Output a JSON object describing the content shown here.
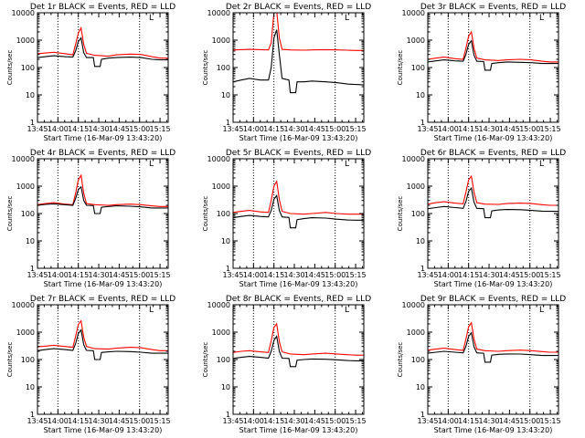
{
  "page": {
    "background": "#ffffff"
  },
  "colors": {
    "events": "#000000",
    "lld": "#ff0000",
    "axis": "#000000"
  },
  "shared": {
    "x_ticks": [
      "13:45",
      "14:00",
      "14:15",
      "14:30",
      "14:45",
      "15:00",
      "15:15"
    ],
    "y_ticks": [
      "1",
      "10",
      "100",
      "1000",
      "10000"
    ],
    "xlabel": "Start Time (16-Mar-09 13:43:20)",
    "ylabel": "Counts/sec",
    "corner_mark": "L"
  },
  "chart_data": [
    {
      "type": "line",
      "title": "Det 1r BLACK = Events, RED = LLD",
      "xlabel": "Start Time (16-Mar-09 13:43:20)",
      "ylabel": "Counts/sec",
      "x_units": "minutes after 13:45",
      "xlim": [
        0,
        96
      ],
      "ylim": [
        1,
        10000
      ],
      "yscale": "log",
      "vlines": [
        "14:00",
        "14:15",
        "15:00"
      ],
      "series": [
        {
          "name": "Events",
          "color": "#000000",
          "x": [
            0,
            6,
            12,
            20,
            26,
            28,
            30,
            32,
            34,
            36,
            41,
            42,
            46,
            47,
            52,
            58,
            68,
            76,
            84,
            90,
            96
          ],
          "y": [
            230,
            250,
            270,
            250,
            240,
            400,
            900,
            1200,
            350,
            230,
            230,
            110,
            110,
            200,
            220,
            230,
            240,
            230,
            200,
            190,
            190
          ]
        },
        {
          "name": "LLD",
          "color": "#ff0000",
          "x": [
            0,
            6,
            12,
            20,
            26,
            28,
            30,
            32,
            34,
            36,
            42,
            52,
            58,
            68,
            76,
            84,
            90,
            96
          ],
          "y": [
            320,
            340,
            360,
            320,
            290,
            700,
            1800,
            2800,
            700,
            330,
            280,
            260,
            290,
            310,
            300,
            250,
            220,
            220
          ]
        }
      ]
    },
    {
      "type": "line",
      "title": "Det 2r BLACK = Events, RED = LLD",
      "xlabel": "Start Time (16-Mar-09 13:43:20)",
      "ylabel": "Counts/sec",
      "x_units": "minutes after 13:45",
      "xlim": [
        0,
        96
      ],
      "ylim": [
        1,
        10000
      ],
      "yscale": "log",
      "vlines": [
        "14:00",
        "14:15",
        "15:00"
      ],
      "series": [
        {
          "name": "Events",
          "color": "#000000",
          "x": [
            0,
            6,
            12,
            20,
            26,
            28,
            30,
            32,
            34,
            36,
            41,
            42,
            46,
            47,
            52,
            58,
            68,
            76,
            84,
            90,
            96
          ],
          "y": [
            30,
            35,
            40,
            35,
            35,
            100,
            1200,
            2400,
            300,
            40,
            35,
            12,
            12,
            30,
            30,
            32,
            30,
            28,
            25,
            24,
            23
          ]
        },
        {
          "name": "LLD",
          "color": "#ff0000",
          "x": [
            0,
            6,
            12,
            20,
            26,
            28,
            30,
            32,
            34,
            36,
            42,
            52,
            58,
            68,
            76,
            84,
            90,
            96
          ],
          "y": [
            440,
            450,
            460,
            450,
            440,
            800,
            10000,
            12000,
            1200,
            460,
            440,
            430,
            440,
            450,
            440,
            430,
            420,
            420
          ]
        }
      ]
    },
    {
      "type": "line",
      "title": "Det 3r BLACK = Events, RED = LLD",
      "xlabel": "Start Time (16-Mar-09 13:43:20)",
      "ylabel": "Counts/sec",
      "x_units": "minutes after 13:45",
      "xlim": [
        0,
        96
      ],
      "ylim": [
        1,
        10000
      ],
      "yscale": "log",
      "vlines": [
        "14:00",
        "14:15",
        "15:00"
      ],
      "series": [
        {
          "name": "Events",
          "color": "#000000",
          "x": [
            0,
            6,
            12,
            20,
            26,
            28,
            30,
            32,
            34,
            36,
            41,
            42,
            46,
            47,
            52,
            58,
            68,
            76,
            84,
            90,
            96
          ],
          "y": [
            160,
            175,
            190,
            175,
            170,
            300,
            700,
            950,
            280,
            170,
            165,
            80,
            80,
            140,
            150,
            160,
            155,
            150,
            140,
            140,
            140
          ]
        },
        {
          "name": "LLD",
          "color": "#ff0000",
          "x": [
            0,
            6,
            12,
            20,
            26,
            28,
            30,
            32,
            34,
            36,
            42,
            52,
            58,
            68,
            76,
            84,
            90,
            96
          ],
          "y": [
            200,
            220,
            240,
            210,
            200,
            500,
            1400,
            2000,
            500,
            220,
            190,
            180,
            190,
            200,
            190,
            170,
            160,
            160
          ]
        }
      ]
    },
    {
      "type": "line",
      "title": "Det 4r BLACK = Events, RED = LLD",
      "xlabel": "Start Time (16-Mar-09 13:43:20)",
      "ylabel": "Counts/sec",
      "x_units": "minutes after 13:45",
      "xlim": [
        0,
        96
      ],
      "ylim": [
        1,
        10000
      ],
      "yscale": "log",
      "vlines": [
        "14:00",
        "14:15",
        "15:00"
      ],
      "series": [
        {
          "name": "Events",
          "color": "#000000",
          "x": [
            0,
            6,
            12,
            20,
            26,
            28,
            30,
            32,
            34,
            36,
            41,
            42,
            46,
            47,
            52,
            58,
            68,
            76,
            84,
            90,
            96
          ],
          "y": [
            200,
            215,
            225,
            210,
            200,
            350,
            750,
            950,
            300,
            200,
            195,
            100,
            100,
            170,
            180,
            190,
            185,
            175,
            160,
            160,
            160
          ]
        },
        {
          "name": "LLD",
          "color": "#ff0000",
          "x": [
            0,
            6,
            12,
            20,
            26,
            28,
            30,
            32,
            34,
            36,
            42,
            52,
            58,
            68,
            76,
            84,
            90,
            96
          ],
          "y": [
            210,
            230,
            250,
            220,
            210,
            550,
            1700,
            2500,
            550,
            230,
            210,
            200,
            210,
            220,
            210,
            190,
            180,
            180
          ]
        }
      ]
    },
    {
      "type": "line",
      "title": "Det 5r BLACK = Events, RED = LLD",
      "xlabel": "Start Time (16-Mar-09 13:43:20)",
      "ylabel": "Counts/sec",
      "x_units": "minutes after 13:45",
      "xlim": [
        0,
        96
      ],
      "ylim": [
        1,
        10000
      ],
      "yscale": "log",
      "vlines": [
        "14:00",
        "14:15",
        "15:00"
      ],
      "series": [
        {
          "name": "Events",
          "color": "#000000",
          "x": [
            0,
            6,
            12,
            20,
            26,
            28,
            30,
            32,
            34,
            36,
            41,
            42,
            46,
            47,
            52,
            58,
            68,
            76,
            84,
            90,
            96
          ],
          "y": [
            70,
            78,
            85,
            78,
            75,
            130,
            330,
            450,
            130,
            75,
            72,
            30,
            30,
            60,
            65,
            70,
            68,
            62,
            58,
            57,
            57
          ]
        },
        {
          "name": "LLD",
          "color": "#ff0000",
          "x": [
            0,
            6,
            12,
            20,
            26,
            28,
            30,
            32,
            34,
            36,
            42,
            52,
            58,
            68,
            76,
            84,
            90,
            96
          ],
          "y": [
            110,
            120,
            130,
            115,
            110,
            300,
            1000,
            1500,
            320,
            120,
            100,
            95,
            100,
            110,
            100,
            95,
            95,
            95
          ]
        }
      ]
    },
    {
      "type": "line",
      "title": "Det 6r BLACK = Events, RED = LLD",
      "xlabel": "Start Time (16-Mar-09 13:43:20)",
      "ylabel": "Counts/sec",
      "x_units": "minutes after 13:45",
      "xlim": [
        0,
        96
      ],
      "ylim": [
        1,
        10000
      ],
      "yscale": "log",
      "vlines": [
        "14:00",
        "14:15",
        "15:00"
      ],
      "series": [
        {
          "name": "Events",
          "color": "#000000",
          "x": [
            0,
            6,
            12,
            20,
            26,
            28,
            30,
            32,
            34,
            36,
            41,
            42,
            46,
            47,
            52,
            58,
            68,
            76,
            84,
            90,
            96
          ],
          "y": [
            150,
            165,
            180,
            165,
            155,
            270,
            650,
            850,
            260,
            155,
            150,
            70,
            70,
            125,
            135,
            140,
            138,
            130,
            122,
            120,
            120
          ]
        },
        {
          "name": "LLD",
          "color": "#ff0000",
          "x": [
            0,
            6,
            12,
            20,
            26,
            28,
            30,
            32,
            34,
            36,
            42,
            52,
            58,
            68,
            76,
            84,
            90,
            96
          ],
          "y": [
            220,
            250,
            270,
            240,
            225,
            600,
            1700,
            2300,
            600,
            250,
            220,
            215,
            230,
            240,
            230,
            210,
            200,
            200
          ]
        }
      ]
    },
    {
      "type": "line",
      "title": "Det 7r BLACK = Events, RED = LLD",
      "xlabel": "Start Time (16-Mar-09 13:43:20)",
      "ylabel": "Counts/sec",
      "x_units": "minutes after 13:45",
      "xlim": [
        0,
        96
      ],
      "ylim": [
        1,
        10000
      ],
      "yscale": "log",
      "vlines": [
        "14:00",
        "14:15",
        "15:00"
      ],
      "series": [
        {
          "name": "Events",
          "color": "#000000",
          "x": [
            0,
            6,
            12,
            20,
            26,
            28,
            30,
            32,
            34,
            36,
            41,
            42,
            46,
            47,
            52,
            58,
            68,
            76,
            84,
            90,
            96
          ],
          "y": [
            210,
            230,
            250,
            230,
            215,
            380,
            900,
            1200,
            350,
            215,
            210,
            100,
            100,
            180,
            190,
            200,
            195,
            185,
            170,
            170,
            170
          ]
        },
        {
          "name": "LLD",
          "color": "#ff0000",
          "x": [
            0,
            6,
            12,
            20,
            26,
            28,
            30,
            32,
            34,
            36,
            42,
            52,
            58,
            68,
            76,
            84,
            90,
            96
          ],
          "y": [
            290,
            310,
            330,
            300,
            280,
            700,
            1900,
            2600,
            650,
            300,
            250,
            240,
            260,
            280,
            270,
            230,
            210,
            210
          ]
        }
      ]
    },
    {
      "type": "line",
      "title": "Det 8r BLACK = Events, RED = LLD",
      "xlabel": "Start Time (16-Mar-09 13:43:20)",
      "ylabel": "Counts/sec",
      "x_units": "minutes after 13:45",
      "xlim": [
        0,
        96
      ],
      "ylim": [
        1,
        10000
      ],
      "yscale": "log",
      "vlines": [
        "14:00",
        "14:15",
        "15:00"
      ],
      "series": [
        {
          "name": "Events",
          "color": "#000000",
          "x": [
            0,
            6,
            12,
            20,
            26,
            28,
            30,
            32,
            34,
            36,
            41,
            42,
            46,
            47,
            52,
            58,
            68,
            76,
            84,
            90,
            96
          ],
          "y": [
            110,
            120,
            130,
            120,
            112,
            200,
            500,
            700,
            200,
            112,
            110,
            55,
            55,
            95,
            100,
            105,
            102,
            98,
            92,
            90,
            90
          ]
        },
        {
          "name": "LLD",
          "color": "#ff0000",
          "x": [
            0,
            6,
            12,
            20,
            26,
            28,
            30,
            32,
            34,
            36,
            42,
            52,
            58,
            68,
            76,
            84,
            90,
            96
          ],
          "y": [
            180,
            200,
            210,
            190,
            180,
            480,
            1500,
            2000,
            450,
            190,
            160,
            150,
            160,
            170,
            160,
            150,
            145,
            145
          ]
        }
      ]
    },
    {
      "type": "line",
      "title": "Det 9r BLACK = Events, RED = LLD",
      "xlabel": "Start Time (16-Mar-09 13:43:20)",
      "ylabel": "Counts/sec",
      "x_units": "minutes after 13:45",
      "xlim": [
        0,
        96
      ],
      "ylim": [
        1,
        10000
      ],
      "yscale": "log",
      "vlines": [
        "14:00",
        "14:15",
        "15:00"
      ],
      "series": [
        {
          "name": "Events",
          "color": "#000000",
          "x": [
            0,
            6,
            12,
            20,
            26,
            28,
            30,
            32,
            34,
            36,
            41,
            42,
            46,
            47,
            52,
            58,
            68,
            76,
            84,
            90,
            96
          ],
          "y": [
            170,
            185,
            200,
            185,
            175,
            300,
            700,
            950,
            290,
            175,
            170,
            80,
            80,
            145,
            155,
            160,
            158,
            150,
            140,
            140,
            140
          ]
        },
        {
          "name": "LLD",
          "color": "#ff0000",
          "x": [
            0,
            6,
            12,
            20,
            26,
            28,
            30,
            32,
            34,
            36,
            42,
            52,
            58,
            68,
            76,
            84,
            90,
            96
          ],
          "y": [
            220,
            240,
            260,
            230,
            215,
            550,
            1600,
            2200,
            550,
            240,
            210,
            200,
            210,
            220,
            210,
            195,
            185,
            185
          ]
        }
      ]
    }
  ]
}
